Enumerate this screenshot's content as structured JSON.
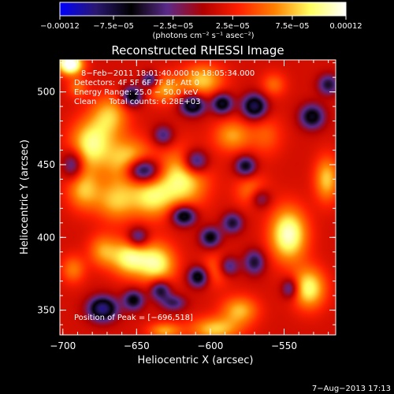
{
  "chart_data": {
    "type": "heatmap",
    "title": "Reconstructed RHESSI Image",
    "xlabel": "Heliocentric X (arcsec)",
    "ylabel": "Heliocentric Y (arcsec)",
    "xlim": [
      -702,
      -515
    ],
    "ylim": [
      333,
      522
    ],
    "x_ticks": [
      {
        "value": -700,
        "label": "−700"
      },
      {
        "value": -650,
        "label": "−650"
      },
      {
        "value": -600,
        "label": "−600"
      },
      {
        "value": -550,
        "label": "−550"
      }
    ],
    "y_ticks": [
      {
        "value": 350,
        "label": "350"
      },
      {
        "value": 400,
        "label": "400"
      },
      {
        "value": 450,
        "label": "450"
      },
      {
        "value": 500,
        "label": "500"
      }
    ],
    "colorbar": {
      "min": -0.00012,
      "max": 0.00012,
      "unit_label": "(photons cm⁻² s⁻¹ asec⁻²)",
      "ticks": [
        {
          "value": -0.00012,
          "label": "−0.00012"
        },
        {
          "value": -7.5e-05,
          "label": "−7.5e−05"
        },
        {
          "value": -2.5e-05,
          "label": "−2.5e−05"
        },
        {
          "value": 2.5e-05,
          "label": "2.5e−05"
        },
        {
          "value": 7.5e-05,
          "label": "7.5e−05"
        },
        {
          "value": 0.00012,
          "label": "0.00012"
        }
      ],
      "colors": [
        "#0000ff",
        "#2a1870",
        "#000000",
        "#5a2a8a",
        "#b00000",
        "#ff2000",
        "#ff8000",
        "#ffff60",
        "#ffffff"
      ]
    },
    "annotations": [
      "8−Feb−2011 18:01:40.000 to 18:05:34.000",
      "Detectors: 4F 5F 6F 7F 8F, Att 0",
      "Energy Range: 25.0 − 50.0 keV",
      "Clean     Total counts: 6.28E+03"
    ],
    "peak_label": "Position of Peak = [−696,518]",
    "grid": false,
    "blobs": [
      {
        "x": -695,
        "y": 519,
        "sx": 6,
        "sy": 5,
        "a": 1.15
      },
      {
        "x": -681,
        "y": 464,
        "sx": 10,
        "sy": 12,
        "a": 0.75
      },
      {
        "x": -668,
        "y": 484,
        "sx": 9,
        "sy": 10,
        "a": 0.55
      },
      {
        "x": -686,
        "y": 433,
        "sx": 8,
        "sy": 10,
        "a": 0.55
      },
      {
        "x": -655,
        "y": 452,
        "sx": 11,
        "sy": 11,
        "a": 0.7
      },
      {
        "x": -664,
        "y": 425,
        "sx": 10,
        "sy": 10,
        "a": 0.55
      },
      {
        "x": -640,
        "y": 427,
        "sx": 10,
        "sy": 10,
        "a": 0.6
      },
      {
        "x": -619,
        "y": 440,
        "sx": 12,
        "sy": 14,
        "a": 0.75
      },
      {
        "x": -631,
        "y": 502,
        "sx": 9,
        "sy": 7,
        "a": 0.5
      },
      {
        "x": -605,
        "y": 508,
        "sx": 10,
        "sy": 8,
        "a": 0.6
      },
      {
        "x": -585,
        "y": 470,
        "sx": 9,
        "sy": 8,
        "a": 0.5
      },
      {
        "x": -655,
        "y": 386,
        "sx": 9,
        "sy": 9,
        "a": 0.75
      },
      {
        "x": -673,
        "y": 391,
        "sx": 7,
        "sy": 8,
        "a": 0.45
      },
      {
        "x": -636,
        "y": 382,
        "sx": 9,
        "sy": 10,
        "a": 0.75
      },
      {
        "x": -596,
        "y": 378,
        "sx": 7,
        "sy": 8,
        "a": 0.4
      },
      {
        "x": -547,
        "y": 402,
        "sx": 9,
        "sy": 13,
        "a": 0.9
      },
      {
        "x": -533,
        "y": 365,
        "sx": 8,
        "sy": 10,
        "a": 0.75
      },
      {
        "x": -521,
        "y": 440,
        "sx": 6,
        "sy": 11,
        "a": 0.6
      },
      {
        "x": -580,
        "y": 350,
        "sx": 9,
        "sy": 7,
        "a": 0.55
      },
      {
        "x": -597,
        "y": 337,
        "sx": 12,
        "sy": 6,
        "a": 0.6
      },
      {
        "x": -631,
        "y": 336,
        "sx": 8,
        "sy": 4,
        "a": 0.5
      },
      {
        "x": -693,
        "y": 378,
        "sx": 6,
        "sy": 7,
        "a": 0.4
      },
      {
        "x": -562,
        "y": 470,
        "sx": 8,
        "sy": 10,
        "a": 0.3
      },
      {
        "x": -572,
        "y": 432,
        "sx": 8,
        "sy": 8,
        "a": 0.4
      },
      {
        "x": -557,
        "y": 505,
        "sx": 6,
        "sy": 6,
        "a": 0.35
      },
      {
        "x": -690,
        "y": 503,
        "sx": 5,
        "sy": 5,
        "a": 0.35
      },
      {
        "x": -653,
        "y": 497,
        "sx": 5,
        "sy": 5,
        "a": -0.8
      },
      {
        "x": -641,
        "y": 508,
        "sx": 4,
        "sy": 4,
        "a": -0.7
      },
      {
        "x": -612,
        "y": 491,
        "sx": 6,
        "sy": 5,
        "a": -0.9
      },
      {
        "x": -592,
        "y": 492,
        "sx": 5,
        "sy": 5,
        "a": -0.8
      },
      {
        "x": -570,
        "y": 490,
        "sx": 6,
        "sy": 6,
        "a": -0.9
      },
      {
        "x": -646,
        "y": 446,
        "sx": 8,
        "sy": 6,
        "a": -1.1
      },
      {
        "x": -610,
        "y": 452,
        "sx": 6,
        "sy": 6,
        "a": -0.8
      },
      {
        "x": -576,
        "y": 449,
        "sx": 5,
        "sy": 5,
        "a": -0.7
      },
      {
        "x": -618,
        "y": 415,
        "sx": 6,
        "sy": 5,
        "a": -0.9
      },
      {
        "x": -600,
        "y": 400,
        "sx": 5,
        "sy": 5,
        "a": -0.7
      },
      {
        "x": -585,
        "y": 410,
        "sx": 5,
        "sy": 5,
        "a": -0.6
      },
      {
        "x": -649,
        "y": 400,
        "sx": 5,
        "sy": 5,
        "a": -0.6
      },
      {
        "x": -608,
        "y": 373,
        "sx": 5,
        "sy": 5,
        "a": -0.8
      },
      {
        "x": -588,
        "y": 380,
        "sx": 5,
        "sy": 5,
        "a": -0.6
      },
      {
        "x": -634,
        "y": 364,
        "sx": 5,
        "sy": 5,
        "a": -0.7
      },
      {
        "x": -673,
        "y": 351,
        "sx": 7,
        "sy": 6,
        "a": -1.0
      },
      {
        "x": -652,
        "y": 357,
        "sx": 5,
        "sy": 5,
        "a": -0.7
      },
      {
        "x": -570,
        "y": 383,
        "sx": 5,
        "sy": 6,
        "a": -0.6
      },
      {
        "x": -546,
        "y": 365,
        "sx": 4,
        "sy": 5,
        "a": -0.55
      },
      {
        "x": -531,
        "y": 483,
        "sx": 6,
        "sy": 6,
        "a": -0.75
      },
      {
        "x": -520,
        "y": 505,
        "sx": 5,
        "sy": 5,
        "a": -0.6
      },
      {
        "x": -693,
        "y": 450,
        "sx": 5,
        "sy": 7,
        "a": -0.6
      },
      {
        "x": -632,
        "y": 470,
        "sx": 5,
        "sy": 5,
        "a": -0.5
      },
      {
        "x": -566,
        "y": 427,
        "sx": 5,
        "sy": 5,
        "a": -0.5
      },
      {
        "x": -625,
        "y": 355,
        "sx": 6,
        "sy": 4,
        "a": -0.5
      }
    ]
  },
  "footer_timestamp": "7−Aug−2013 17:13"
}
